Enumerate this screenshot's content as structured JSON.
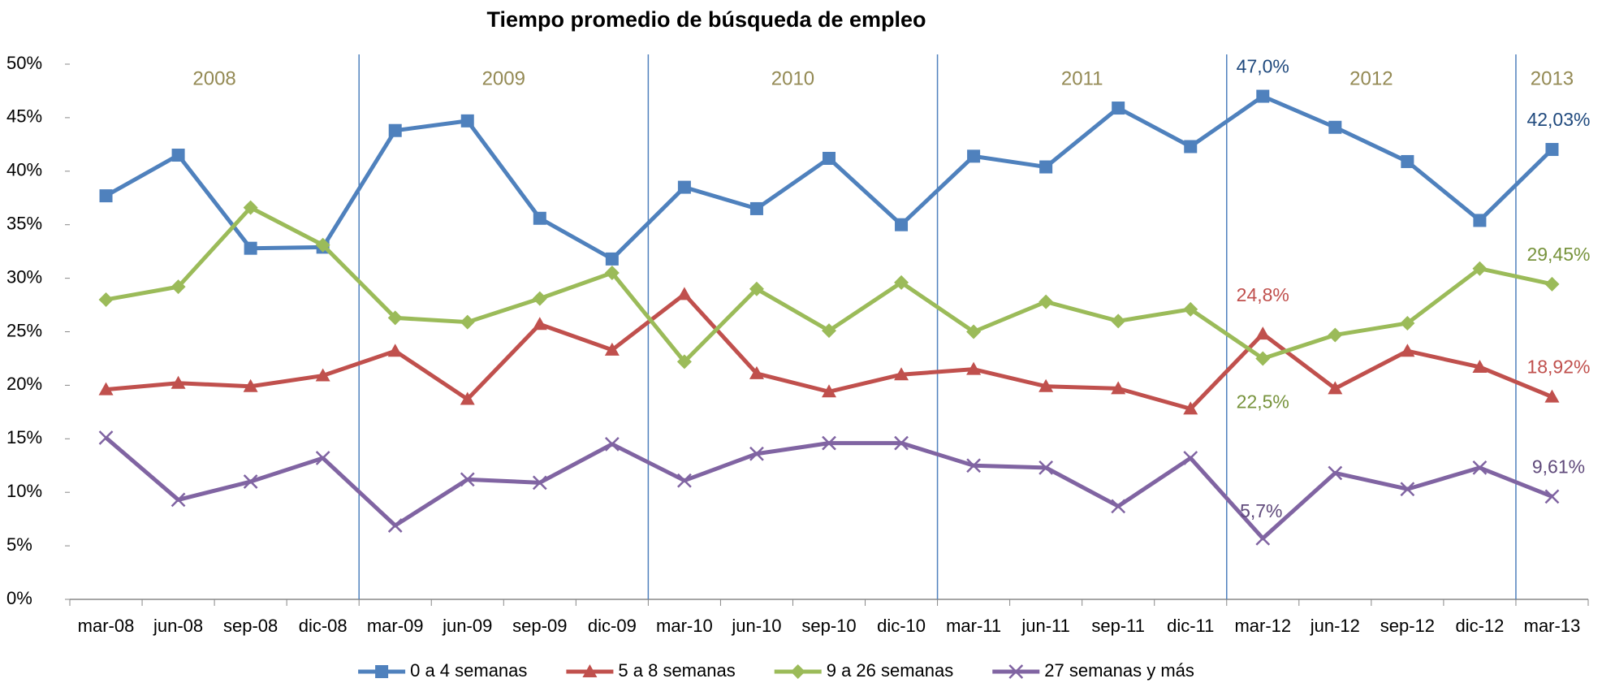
{
  "chart_data": {
    "type": "line",
    "title": "Tiempo promedio de búsqueda de empleo",
    "categories": [
      "mar-08",
      "jun-08",
      "sep-08",
      "dic-08",
      "mar-09",
      "jun-09",
      "sep-09",
      "dic-09",
      "mar-10",
      "jun-10",
      "sep-10",
      "dic-10",
      "mar-11",
      "jun-11",
      "sep-11",
      "dic-11",
      "mar-12",
      "jun-12",
      "sep-12",
      "dic-12",
      "mar-13"
    ],
    "year_labels": [
      "2008",
      "2009",
      "2010",
      "2011",
      "2012",
      "2013"
    ],
    "ylim": [
      0,
      50
    ],
    "yticks": [
      {
        "value": 0,
        "label": "0%"
      },
      {
        "value": 5,
        "label": "5%"
      },
      {
        "value": 10,
        "label": "10%"
      },
      {
        "value": 15,
        "label": "15%"
      },
      {
        "value": 20,
        "label": "20%"
      },
      {
        "value": 25,
        "label": "25%"
      },
      {
        "value": 30,
        "label": "30%"
      },
      {
        "value": 35,
        "label": "35%"
      },
      {
        "value": 40,
        "label": "40%"
      },
      {
        "value": 45,
        "label": "45%"
      },
      {
        "value": 50,
        "label": "50%"
      }
    ],
    "legend": "bottom",
    "series": [
      {
        "name": "0 a 4 semanas",
        "color": "#4f81bd",
        "marker": "square",
        "values": [
          37.7,
          41.5,
          32.8,
          32.9,
          43.8,
          44.7,
          35.6,
          31.8,
          38.5,
          36.5,
          41.2,
          35.0,
          41.4,
          40.4,
          45.9,
          42.3,
          47.0,
          44.1,
          40.9,
          35.4,
          42.03
        ],
        "value_labels": [
          null,
          null,
          null,
          null,
          null,
          null,
          null,
          null,
          null,
          null,
          null,
          null,
          null,
          null,
          null,
          null,
          "47,0%",
          null,
          null,
          null,
          "42,03%"
        ]
      },
      {
        "name": "5 a 8 semanas",
        "color": "#c0504d",
        "marker": "triangle",
        "values": [
          19.6,
          20.2,
          19.9,
          20.9,
          23.2,
          18.7,
          25.7,
          23.3,
          28.5,
          21.1,
          19.4,
          21.0,
          21.5,
          19.9,
          19.7,
          17.8,
          24.8,
          19.7,
          23.2,
          21.7,
          18.92
        ],
        "value_labels": [
          null,
          null,
          null,
          null,
          null,
          null,
          null,
          null,
          null,
          null,
          null,
          null,
          null,
          null,
          null,
          null,
          "24,8%",
          null,
          null,
          null,
          "18,92%"
        ]
      },
      {
        "name": "9 a 26 semanas",
        "color": "#9bbb59",
        "marker": "diamond",
        "values": [
          28.0,
          29.2,
          36.6,
          33.1,
          26.3,
          25.9,
          28.1,
          30.5,
          22.2,
          29.0,
          25.1,
          29.6,
          25.0,
          27.8,
          26.0,
          27.1,
          22.5,
          24.7,
          25.8,
          30.9,
          29.45
        ],
        "value_labels": [
          null,
          null,
          null,
          null,
          null,
          null,
          null,
          null,
          null,
          null,
          null,
          null,
          null,
          null,
          null,
          null,
          "22,5%",
          null,
          null,
          null,
          "29,45%"
        ]
      },
      {
        "name": "27 semanas y más",
        "color": "#8064a2",
        "marker": "x",
        "values": [
          15.1,
          9.3,
          11.0,
          13.2,
          6.9,
          11.2,
          10.9,
          14.5,
          11.1,
          13.6,
          14.6,
          14.6,
          12.5,
          12.3,
          8.7,
          13.2,
          5.7,
          11.8,
          10.3,
          12.3,
          9.61
        ],
        "value_labels": [
          null,
          null,
          null,
          null,
          null,
          null,
          null,
          null,
          null,
          null,
          null,
          null,
          null,
          null,
          null,
          null,
          "5,7%",
          null,
          null,
          null,
          "9,61%"
        ]
      }
    ]
  }
}
